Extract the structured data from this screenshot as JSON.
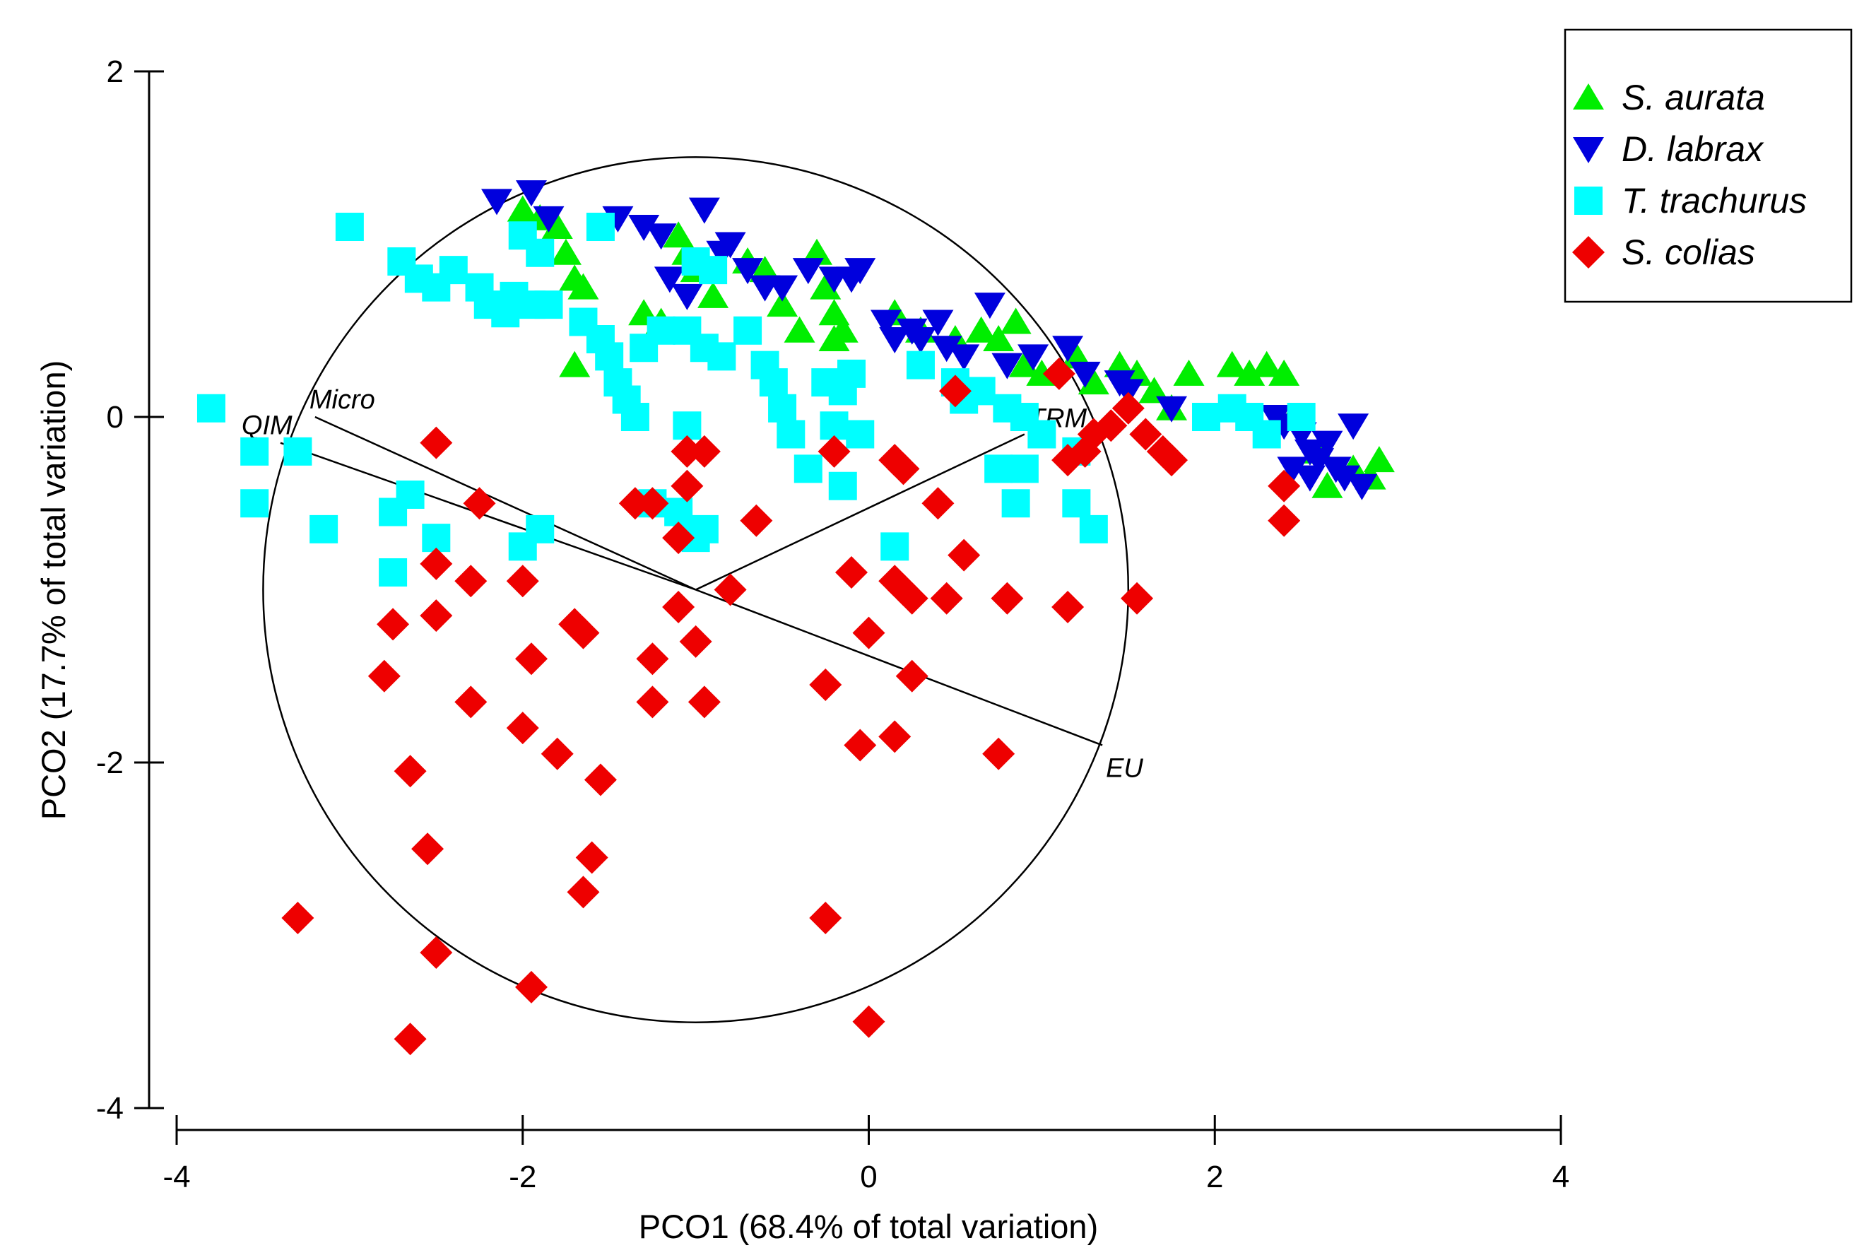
{
  "chart_data": {
    "type": "scatter",
    "title": "",
    "xlabel": "PCO1 (68.4% of total variation)",
    "ylabel": "PCO2 (17.7% of total variation)",
    "xlim": [
      -4,
      4
    ],
    "ylim": [
      -4,
      2
    ],
    "xticks": [
      -4,
      -2,
      0,
      2,
      4
    ],
    "yticks": [
      -4,
      -2,
      0,
      2
    ],
    "xtick_labels": [
      "-4",
      "-2",
      "0",
      "2",
      "4"
    ],
    "ytick_labels": [
      "-4",
      "-2",
      "0",
      "2"
    ],
    "grid": false,
    "legend_position": "top-right",
    "correlation_circle": {
      "center": [
        -1.0,
        -1.0
      ],
      "radius": 2.5
    },
    "vectors": [
      {
        "label": "Micro",
        "end": [
          -3.2,
          0.0
        ]
      },
      {
        "label": "QIM",
        "end": [
          -3.4,
          -0.15
        ]
      },
      {
        "label": "TRM",
        "end": [
          0.9,
          -0.1
        ]
      },
      {
        "label": "EU",
        "end": [
          1.35,
          -1.9
        ]
      }
    ],
    "series": [
      {
        "name": "S. aurata",
        "marker": "triangle-up",
        "color": "#00ee00",
        "points": [
          [
            -2.0,
            1.2
          ],
          [
            -1.9,
            1.15
          ],
          [
            -1.8,
            1.1
          ],
          [
            -1.75,
            0.95
          ],
          [
            -1.7,
            0.8
          ],
          [
            -1.65,
            0.75
          ],
          [
            -1.7,
            0.3
          ],
          [
            -1.3,
            0.6
          ],
          [
            -1.2,
            0.55
          ],
          [
            -1.1,
            1.05
          ],
          [
            -1.05,
            0.95
          ],
          [
            -1.0,
            0.85
          ],
          [
            -0.9,
            0.7
          ],
          [
            -0.7,
            0.9
          ],
          [
            -0.6,
            0.85
          ],
          [
            -0.5,
            0.65
          ],
          [
            -0.4,
            0.5
          ],
          [
            -0.3,
            0.95
          ],
          [
            -0.25,
            0.75
          ],
          [
            -0.2,
            0.6
          ],
          [
            -0.2,
            0.45
          ],
          [
            -0.15,
            0.5
          ],
          [
            0.15,
            0.6
          ],
          [
            0.3,
            0.5
          ],
          [
            0.5,
            0.45
          ],
          [
            0.65,
            0.5
          ],
          [
            0.75,
            0.45
          ],
          [
            0.85,
            0.55
          ],
          [
            0.9,
            0.3
          ],
          [
            1.0,
            0.25
          ],
          [
            1.2,
            0.35
          ],
          [
            1.3,
            0.2
          ],
          [
            1.45,
            0.3
          ],
          [
            1.55,
            0.25
          ],
          [
            1.65,
            0.15
          ],
          [
            1.75,
            0.05
          ],
          [
            1.85,
            0.25
          ],
          [
            2.1,
            0.3
          ],
          [
            2.2,
            0.25
          ],
          [
            2.3,
            0.3
          ],
          [
            2.4,
            0.25
          ],
          [
            2.45,
            0.0
          ],
          [
            2.6,
            -0.2
          ],
          [
            2.8,
            -0.3
          ],
          [
            2.95,
            -0.25
          ],
          [
            2.9,
            -0.35
          ],
          [
            2.65,
            -0.4
          ]
        ]
      },
      {
        "name": "D. labrax",
        "marker": "triangle-down",
        "color": "#0000dd",
        "points": [
          [
            -2.15,
            1.25
          ],
          [
            -1.95,
            1.3
          ],
          [
            -1.85,
            1.15
          ],
          [
            -1.45,
            1.15
          ],
          [
            -1.3,
            1.1
          ],
          [
            -1.2,
            1.05
          ],
          [
            -1.15,
            0.8
          ],
          [
            -1.05,
            0.7
          ],
          [
            -0.95,
            1.2
          ],
          [
            -0.85,
            0.95
          ],
          [
            -0.8,
            1.0
          ],
          [
            -0.7,
            0.85
          ],
          [
            -0.6,
            0.75
          ],
          [
            -0.5,
            0.75
          ],
          [
            -0.35,
            0.85
          ],
          [
            -0.2,
            0.8
          ],
          [
            -0.1,
            0.8
          ],
          [
            -0.05,
            0.85
          ],
          [
            0.1,
            0.55
          ],
          [
            0.15,
            0.45
          ],
          [
            0.25,
            0.5
          ],
          [
            0.3,
            0.45
          ],
          [
            0.4,
            0.55
          ],
          [
            0.45,
            0.4
          ],
          [
            0.55,
            0.35
          ],
          [
            0.7,
            0.65
          ],
          [
            0.8,
            0.3
          ],
          [
            0.95,
            0.35
          ],
          [
            1.15,
            0.4
          ],
          [
            1.25,
            0.25
          ],
          [
            1.45,
            0.2
          ],
          [
            1.5,
            0.15
          ],
          [
            1.75,
            0.05
          ],
          [
            2.35,
            0.0
          ],
          [
            2.4,
            -0.05
          ],
          [
            2.5,
            -0.1
          ],
          [
            2.55,
            -0.2
          ],
          [
            2.6,
            -0.25
          ],
          [
            2.65,
            -0.15
          ],
          [
            2.7,
            -0.3
          ],
          [
            2.75,
            -0.35
          ],
          [
            2.8,
            -0.05
          ],
          [
            2.85,
            -0.4
          ],
          [
            2.55,
            -0.35
          ],
          [
            2.45,
            -0.3
          ]
        ]
      },
      {
        "name": "T. trachurus",
        "marker": "square",
        "color": "#00ffff",
        "points": [
          [
            -3.8,
            0.05
          ],
          [
            -3.55,
            -0.2
          ],
          [
            -3.3,
            -0.2
          ],
          [
            -3.55,
            -0.5
          ],
          [
            -3.0,
            1.1
          ],
          [
            -2.7,
            0.9
          ],
          [
            -2.6,
            0.8
          ],
          [
            -2.5,
            0.75
          ],
          [
            -2.4,
            0.85
          ],
          [
            -2.25,
            0.75
          ],
          [
            -2.2,
            0.65
          ],
          [
            -2.1,
            0.6
          ],
          [
            -2.05,
            0.7
          ],
          [
            -1.95,
            0.65
          ],
          [
            -1.85,
            0.65
          ],
          [
            -2.0,
            1.05
          ],
          [
            -1.9,
            0.95
          ],
          [
            -1.65,
            0.55
          ],
          [
            -1.55,
            0.45
          ],
          [
            -1.5,
            0.35
          ],
          [
            -1.45,
            0.2
          ],
          [
            -1.4,
            0.1
          ],
          [
            -1.35,
            0.0
          ],
          [
            -1.55,
            1.1
          ],
          [
            -1.3,
            0.4
          ],
          [
            -1.2,
            0.5
          ],
          [
            -1.05,
            0.5
          ],
          [
            -0.95,
            0.4
          ],
          [
            -0.85,
            0.35
          ],
          [
            -0.7,
            0.5
          ],
          [
            -0.6,
            0.3
          ],
          [
            -0.55,
            0.2
          ],
          [
            -0.5,
            0.05
          ],
          [
            -0.45,
            -0.1
          ],
          [
            -0.35,
            -0.3
          ],
          [
            -0.25,
            0.2
          ],
          [
            -0.2,
            -0.05
          ],
          [
            -0.15,
            0.15
          ],
          [
            -0.1,
            0.25
          ],
          [
            -0.05,
            -0.1
          ],
          [
            -0.15,
            -0.4
          ],
          [
            -1.05,
            -0.05
          ],
          [
            -1.25,
            -0.5
          ],
          [
            -1.1,
            -0.55
          ],
          [
            -0.95,
            -0.65
          ],
          [
            -1.0,
            -0.7
          ],
          [
            -2.65,
            -0.45
          ],
          [
            -2.75,
            -0.55
          ],
          [
            -2.5,
            -0.7
          ],
          [
            -2.75,
            -0.9
          ],
          [
            -3.15,
            -0.65
          ],
          [
            -2.0,
            -0.75
          ],
          [
            -1.9,
            -0.65
          ],
          [
            0.3,
            0.3
          ],
          [
            0.5,
            0.2
          ],
          [
            0.55,
            0.1
          ],
          [
            0.65,
            0.15
          ],
          [
            0.8,
            0.05
          ],
          [
            0.9,
            0.0
          ],
          [
            1.0,
            -0.1
          ],
          [
            0.75,
            -0.3
          ],
          [
            0.9,
            -0.3
          ],
          [
            0.85,
            -0.5
          ],
          [
            1.2,
            -0.5
          ],
          [
            1.3,
            -0.65
          ],
          [
            1.2,
            -0.2
          ],
          [
            0.15,
            -0.75
          ],
          [
            1.95,
            0.0
          ],
          [
            2.1,
            0.05
          ],
          [
            2.2,
            0.0
          ],
          [
            2.3,
            -0.1
          ],
          [
            2.5,
            0.0
          ],
          [
            -1.0,
            0.9
          ],
          [
            -0.9,
            0.85
          ]
        ]
      },
      {
        "name": "S. colias",
        "marker": "diamond",
        "color": "#ee0000",
        "points": [
          [
            -2.5,
            -0.15
          ],
          [
            -2.25,
            -0.5
          ],
          [
            -2.5,
            -0.85
          ],
          [
            -2.3,
            -0.95
          ],
          [
            -2.5,
            -1.15
          ],
          [
            -2.75,
            -1.2
          ],
          [
            -2.8,
            -1.5
          ],
          [
            -2.0,
            -0.95
          ],
          [
            -1.95,
            -1.4
          ],
          [
            -2.0,
            -1.8
          ],
          [
            -1.8,
            -1.95
          ],
          [
            -1.7,
            -1.2
          ],
          [
            -1.65,
            -1.25
          ],
          [
            -1.55,
            -2.1
          ],
          [
            -1.6,
            -2.55
          ],
          [
            -1.65,
            -2.75
          ],
          [
            -2.3,
            -1.65
          ],
          [
            -2.65,
            -2.05
          ],
          [
            -2.55,
            -2.5
          ],
          [
            -2.5,
            -3.1
          ],
          [
            -1.95,
            -3.3
          ],
          [
            -2.65,
            -3.6
          ],
          [
            -3.3,
            -2.9
          ],
          [
            -1.35,
            -0.5
          ],
          [
            -1.25,
            -0.5
          ],
          [
            -1.25,
            -1.4
          ],
          [
            -1.25,
            -1.65
          ],
          [
            -1.1,
            -0.7
          ],
          [
            -1.1,
            -1.1
          ],
          [
            -1.05,
            -0.4
          ],
          [
            -1.05,
            -0.2
          ],
          [
            -0.95,
            -0.2
          ],
          [
            -1.0,
            -1.3
          ],
          [
            -0.95,
            -1.65
          ],
          [
            -0.8,
            -1.0
          ],
          [
            -0.65,
            -0.6
          ],
          [
            -0.2,
            -0.2
          ],
          [
            -0.25,
            -1.55
          ],
          [
            -0.25,
            -2.9
          ],
          [
            -0.1,
            -0.9
          ],
          [
            -0.05,
            -1.9
          ],
          [
            0.0,
            -1.25
          ],
          [
            0.15,
            -0.25
          ],
          [
            0.2,
            -0.3
          ],
          [
            0.15,
            -0.95
          ],
          [
            0.2,
            -1.0
          ],
          [
            0.25,
            -1.05
          ],
          [
            0.25,
            -1.5
          ],
          [
            0.15,
            -1.85
          ],
          [
            0.4,
            -0.5
          ],
          [
            0.45,
            -1.05
          ],
          [
            0.55,
            -0.8
          ],
          [
            0.8,
            -1.05
          ],
          [
            0.75,
            -1.95
          ],
          [
            1.15,
            -1.1
          ],
          [
            1.55,
            -1.05
          ],
          [
            0.5,
            0.15
          ],
          [
            1.1,
            0.25
          ],
          [
            1.15,
            -0.25
          ],
          [
            1.25,
            -0.2
          ],
          [
            1.3,
            -0.1
          ],
          [
            1.4,
            -0.05
          ],
          [
            1.5,
            0.05
          ],
          [
            1.6,
            -0.1
          ],
          [
            1.7,
            -0.2
          ],
          [
            1.75,
            -0.25
          ],
          [
            2.4,
            -0.4
          ],
          [
            2.4,
            -0.6
          ],
          [
            0.0,
            -3.5
          ]
        ]
      }
    ]
  }
}
